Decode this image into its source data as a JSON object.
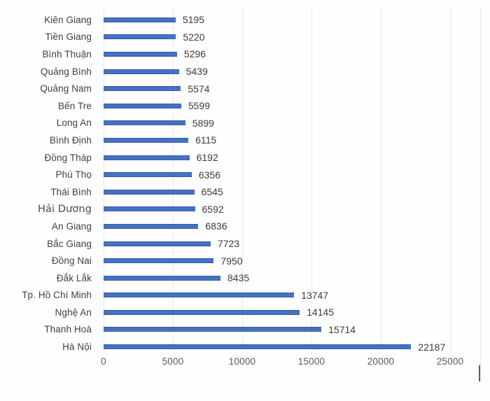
{
  "chart_data": {
    "type": "bar",
    "orientation": "horizontal",
    "title": "",
    "xlabel": "",
    "ylabel": "",
    "categories": [
      "Kiên Giang",
      "Tiền Giang",
      "Bình Thuận",
      "Quảng Bình",
      "Quảng Nam",
      "Bến Tre",
      "Long An",
      "Bình Định",
      "Đồng Tháp",
      "Phú Thọ",
      "Thái Bình",
      "Hải Dương",
      "An Giang",
      "Bắc Giang",
      "Đồng Nai",
      "Đắk Lắk",
      "Tp. Hồ Chí Minh",
      "Nghệ An",
      "Thanh Hoá",
      "Hà Nội"
    ],
    "values": [
      5195,
      5220,
      5296,
      5439,
      5574,
      5599,
      5899,
      6115,
      6192,
      6356,
      6545,
      6592,
      6836,
      7723,
      7950,
      8435,
      13747,
      14145,
      15714,
      22187
    ],
    "data_labels_visible": true,
    "xlim": [
      0,
      25000
    ],
    "x_ticks": [
      0,
      5000,
      10000,
      15000,
      20000,
      25000
    ],
    "grid": "vertical",
    "legend": "none",
    "colors": {
      "bar_fill": "#4472c4",
      "bar_border": "#36599f",
      "category_label": "#3d3f42",
      "value_label": "#3b3b3b",
      "tick_label": "#5a5a5a",
      "gridline": "#e9ebe9",
      "background": "#fdfefd"
    },
    "styling": {
      "alt_font_category": "Hải Dương"
    }
  }
}
